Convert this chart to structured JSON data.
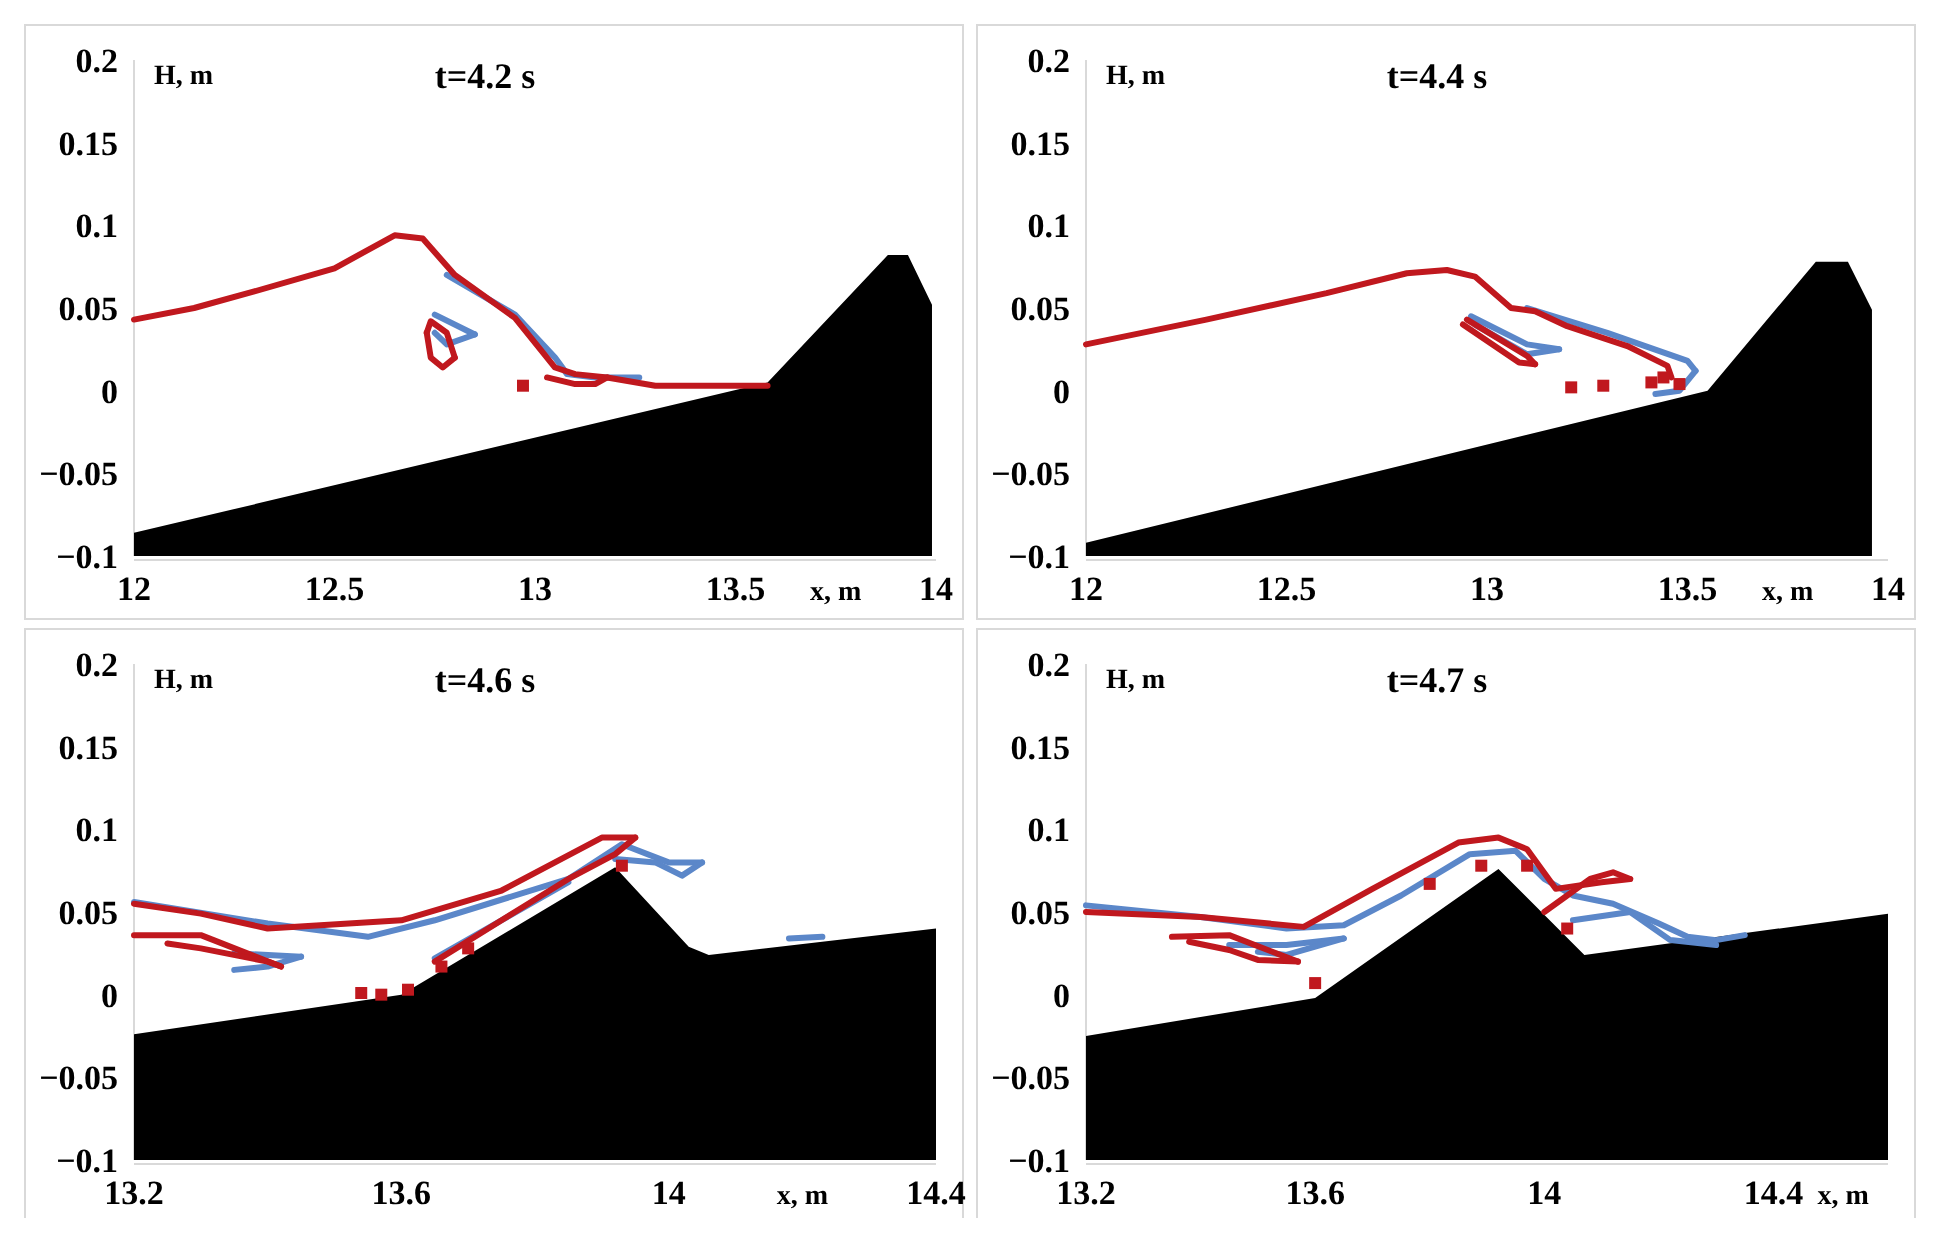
{
  "chart_data": [
    {
      "type": "line",
      "title": "t=4.2 s",
      "xlabel": "x, m",
      "ylabel": "H, m",
      "xlim": [
        12,
        14
      ],
      "xticks": [
        12,
        12.5,
        13,
        13.5,
        14
      ],
      "ylim": [
        -0.1,
        0.2
      ],
      "yticks": [
        -0.1,
        -0.05,
        0,
        0.05,
        0.1,
        0.15,
        0.2
      ],
      "line_style": "solid",
      "marker": "none",
      "series": [
        {
          "type": "area",
          "color": "#000000",
          "x": [
            12,
            12,
            13.58,
            13.88,
            13.93,
            13.99,
            13.99
          ],
          "values": [
            -0.1,
            -0.086,
            0.005,
            0.082,
            0.082,
            0.052,
            -0.1
          ]
        },
        {
          "color": "#5b87c9",
          "x": [
            12.75,
            12.85
          ],
          "values": [
            0.046,
            0.034
          ]
        },
        {
          "color": "#5b87c9",
          "x": [
            12.75,
            12.78,
            12.85
          ],
          "values": [
            0.035,
            0.028,
            0.034
          ]
        },
        {
          "color": "#5b87c9",
          "x": [
            12.78,
            12.95,
            13.05,
            13.08,
            13.15,
            13.26
          ],
          "values": [
            0.07,
            0.046,
            0.02,
            0.01,
            0.008,
            0.008
          ]
        },
        {
          "color": "#c0181e",
          "x": [
            12,
            12.15,
            12.3,
            12.5,
            12.65,
            12.72,
            12.8,
            12.95,
            13.05,
            13.1,
            13.18,
            13.3,
            13.58
          ],
          "values": [
            0.043,
            0.05,
            0.06,
            0.074,
            0.094,
            0.092,
            0.07,
            0.044,
            0.014,
            0.01,
            0.008,
            0.003,
            0.003
          ]
        },
        {
          "color": "#c0181e",
          "x": [
            13.03,
            13.1,
            13.15,
            13.18
          ],
          "values": [
            0.008,
            0.004,
            0.004,
            0.008
          ]
        },
        {
          "color": "#c0181e",
          "x": [
            12.73,
            12.74,
            12.78,
            12.8
          ],
          "values": [
            0.035,
            0.042,
            0.035,
            0.02
          ]
        },
        {
          "color": "#c0181e",
          "x": [
            12.73,
            12.74,
            12.77,
            12.8
          ],
          "values": [
            0.035,
            0.02,
            0.014,
            0.02
          ]
        },
        {
          "type": "scatter",
          "marker": "square",
          "color": "#c0181e",
          "x": [
            12.97
          ],
          "values": [
            0.003
          ]
        }
      ]
    },
    {
      "type": "line",
      "title": "t=4.4 s",
      "xlabel": "x, m",
      "ylabel": "H, m",
      "xlim": [
        12,
        14
      ],
      "xticks": [
        12,
        12.5,
        13,
        13.5,
        14
      ],
      "ylim": [
        -0.1,
        0.2
      ],
      "yticks": [
        -0.1,
        -0.05,
        0,
        0.05,
        0.1,
        0.15,
        0.2
      ],
      "line_style": "solid",
      "marker": "none",
      "series": [
        {
          "type": "area",
          "color": "#000000",
          "x": [
            12,
            12,
            13.55,
            13.82,
            13.9,
            13.96,
            13.96
          ],
          "values": [
            -0.1,
            -0.092,
            0.0,
            0.078,
            0.078,
            0.049,
            -0.1
          ]
        },
        {
          "color": "#5b87c9",
          "x": [
            12.96,
            13.1,
            13.18
          ],
          "values": [
            0.045,
            0.028,
            0.025
          ]
        },
        {
          "color": "#5b87c9",
          "x": [
            12.97,
            13.1,
            13.18
          ],
          "values": [
            0.04,
            0.022,
            0.025
          ]
        },
        {
          "color": "#5b87c9",
          "x": [
            13.1,
            13.3,
            13.5,
            13.52
          ],
          "values": [
            0.05,
            0.035,
            0.018,
            0.012
          ]
        },
        {
          "color": "#5b87c9",
          "x": [
            13.42,
            13.48,
            13.52
          ],
          "values": [
            -0.002,
            0.0,
            0.012
          ]
        },
        {
          "color": "#c0181e",
          "x": [
            12,
            12.3,
            12.6,
            12.8,
            12.9,
            12.97,
            13.06,
            13.12,
            13.2,
            13.35,
            13.45,
            13.46
          ],
          "values": [
            0.028,
            0.043,
            0.059,
            0.071,
            0.073,
            0.069,
            0.05,
            0.048,
            0.039,
            0.027,
            0.015,
            0.008
          ]
        },
        {
          "color": "#c0181e",
          "x": [
            12.95,
            13.1,
            13.12
          ],
          "values": [
            0.043,
            0.021,
            0.016
          ]
        },
        {
          "color": "#c0181e",
          "x": [
            12.94,
            13.08,
            13.12
          ],
          "values": [
            0.04,
            0.017,
            0.016
          ]
        },
        {
          "type": "scatter",
          "marker": "square",
          "color": "#c0181e",
          "x": [
            13.21,
            13.29,
            13.41,
            13.44,
            13.48
          ],
          "values": [
            0.002,
            0.003,
            0.005,
            0.008,
            0.004
          ]
        }
      ]
    },
    {
      "type": "line",
      "title": "t=4.6 s",
      "xlabel": "x, m",
      "ylabel": "H, m",
      "xlim": [
        13.2,
        14.4
      ],
      "xticks": [
        13.2,
        13.6,
        14,
        14.4
      ],
      "ylim": [
        -0.1,
        0.2
      ],
      "yticks": [
        -0.1,
        -0.05,
        0,
        0.05,
        0.1,
        0.15,
        0.2
      ],
      "line_style": "solid",
      "marker": "none",
      "series": [
        {
          "type": "area",
          "color": "#000000",
          "x": [
            13.2,
            13.2,
            13.6,
            13.92,
            14.03,
            14.06,
            14.4,
            14.4
          ],
          "values": [
            -0.1,
            -0.024,
            0.0,
            0.077,
            0.029,
            0.024,
            0.04,
            -0.1
          ]
        },
        {
          "color": "#5b87c9",
          "x": [
            13.2,
            13.4,
            13.55,
            13.65,
            13.85,
            13.93,
            14.0,
            14.05
          ],
          "values": [
            0.056,
            0.043,
            0.035,
            0.045,
            0.07,
            0.091,
            0.08,
            0.08
          ]
        },
        {
          "color": "#5b87c9",
          "x": [
            13.92,
            13.98,
            14.02,
            14.05
          ],
          "values": [
            0.082,
            0.08,
            0.072,
            0.08
          ]
        },
        {
          "color": "#5b87c9",
          "x": [
            13.35,
            13.45
          ],
          "values": [
            0.025,
            0.023
          ]
        },
        {
          "color": "#5b87c9",
          "x": [
            13.35,
            13.4,
            13.45
          ],
          "values": [
            0.015,
            0.017,
            0.023
          ]
        },
        {
          "color": "#5b87c9",
          "x": [
            13.65,
            13.75,
            13.85
          ],
          "values": [
            0.022,
            0.045,
            0.068
          ]
        },
        {
          "color": "#5b87c9",
          "x": [
            14.18,
            14.23
          ],
          "values": [
            0.034,
            0.035
          ]
        },
        {
          "color": "#c0181e",
          "x": [
            13.2,
            13.3,
            13.4,
            13.6,
            13.75,
            13.9,
            13.95
          ],
          "values": [
            0.055,
            0.049,
            0.04,
            0.045,
            0.063,
            0.095,
            0.095
          ]
        },
        {
          "color": "#c0181e",
          "x": [
            13.65,
            13.75,
            13.85,
            13.92,
            13.95
          ],
          "values": [
            0.02,
            0.045,
            0.07,
            0.085,
            0.095
          ]
        },
        {
          "color": "#c0181e",
          "x": [
            13.2,
            13.3,
            13.42
          ],
          "values": [
            0.036,
            0.036,
            0.017
          ]
        },
        {
          "color": "#c0181e",
          "x": [
            13.25,
            13.3,
            13.4,
            13.42
          ],
          "values": [
            0.031,
            0.028,
            0.02,
            0.017
          ]
        },
        {
          "type": "scatter",
          "marker": "square",
          "color": "#c0181e",
          "x": [
            13.54,
            13.57,
            13.61,
            13.66,
            13.7,
            13.93
          ],
          "values": [
            0.001,
            0.0,
            0.003,
            0.017,
            0.028,
            0.078
          ]
        }
      ]
    },
    {
      "type": "line",
      "title": "t=4.7 s",
      "xlabel": "x, m",
      "ylabel": "H, m",
      "xlim": [
        13.2,
        14.6
      ],
      "xticks": [
        13.2,
        13.6,
        14,
        14.4
      ],
      "ylim": [
        -0.1,
        0.2
      ],
      "yticks": [
        -0.1,
        -0.05,
        0,
        0.05,
        0.1,
        0.15,
        0.2
      ],
      "line_style": "solid",
      "marker": "none",
      "series": [
        {
          "type": "area",
          "color": "#000000",
          "x": [
            13.2,
            13.2,
            13.6,
            13.92,
            14.07,
            14.6,
            14.6
          ],
          "values": [
            -0.1,
            -0.025,
            -0.002,
            0.076,
            0.024,
            0.049,
            -0.1
          ]
        },
        {
          "color": "#5b87c9",
          "x": [
            13.2,
            13.4,
            13.55,
            13.65,
            13.75,
            13.87,
            13.95,
            14.0,
            14.05,
            14.12,
            14.2,
            14.25,
            14.3,
            14.35
          ],
          "values": [
            0.054,
            0.047,
            0.04,
            0.042,
            0.06,
            0.085,
            0.087,
            0.07,
            0.06,
            0.055,
            0.043,
            0.035,
            0.033,
            0.036
          ]
        },
        {
          "color": "#5b87c9",
          "x": [
            13.45,
            13.55,
            13.65
          ],
          "values": [
            0.03,
            0.03,
            0.034
          ]
        },
        {
          "color": "#5b87c9",
          "x": [
            13.5,
            13.55,
            13.65
          ],
          "values": [
            0.026,
            0.024,
            0.034
          ]
        },
        {
          "color": "#5b87c9",
          "x": [
            14.05,
            14.15,
            14.22,
            14.3
          ],
          "values": [
            0.045,
            0.05,
            0.033,
            0.03
          ]
        },
        {
          "color": "#c0181e",
          "x": [
            13.2,
            13.4,
            13.58,
            13.7,
            13.85,
            13.92,
            13.97,
            14.02,
            14.1,
            14.15
          ],
          "values": [
            0.05,
            0.047,
            0.041,
            0.064,
            0.092,
            0.095,
            0.088,
            0.064,
            0.068,
            0.07
          ]
        },
        {
          "color": "#c0181e",
          "x": [
            14.0,
            14.04,
            14.08,
            14.12,
            14.15
          ],
          "values": [
            0.05,
            0.06,
            0.07,
            0.074,
            0.07
          ]
        },
        {
          "color": "#c0181e",
          "x": [
            13.35,
            13.45,
            13.57
          ],
          "values": [
            0.035,
            0.036,
            0.02
          ]
        },
        {
          "color": "#c0181e",
          "x": [
            13.38,
            13.45,
            13.5,
            13.57
          ],
          "values": [
            0.032,
            0.027,
            0.021,
            0.02
          ]
        },
        {
          "type": "scatter",
          "marker": "square",
          "color": "#c0181e",
          "x": [
            13.6,
            13.8,
            13.89,
            13.97,
            14.04
          ],
          "values": [
            0.007,
            0.067,
            0.078,
            0.078,
            0.04
          ]
        }
      ]
    }
  ]
}
